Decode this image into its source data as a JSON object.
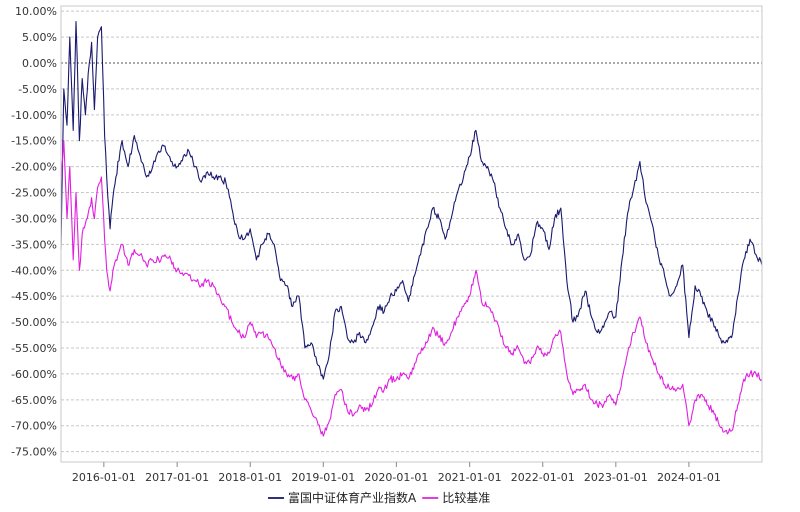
{
  "chart_data": {
    "type": "line",
    "title": "",
    "xlabel": "",
    "ylabel": "",
    "ylim": [
      -77,
      11
    ],
    "y_ticks": [
      10,
      5,
      0,
      -5,
      -10,
      -15,
      -20,
      -25,
      -30,
      -35,
      -40,
      -45,
      -50,
      -55,
      -60,
      -65,
      -70,
      -75
    ],
    "y_tick_format": "%.2f%",
    "x_ticks": [
      "2016-01-01",
      "2017-01-01",
      "2018-01-01",
      "2019-01-01",
      "2020-01-01",
      "2021-01-01",
      "2022-01-01",
      "2023-01-01",
      "2024-01-01"
    ],
    "x_range": [
      "2015-06-01",
      "2024-12-31"
    ],
    "grid": "horizontal dashed",
    "legend_position": "bottom-center",
    "series": [
      {
        "name": "富国中证体育产业指数A",
        "color": "#1a1a6e",
        "points": [
          [
            "2015-06-01",
            -36
          ],
          [
            "2015-06-15",
            -5
          ],
          [
            "2015-07-01",
            -12
          ],
          [
            "2015-07-15",
            5
          ],
          [
            "2015-08-01",
            -13
          ],
          [
            "2015-08-15",
            8
          ],
          [
            "2015-09-01",
            -15
          ],
          [
            "2015-09-15",
            -3
          ],
          [
            "2015-10-01",
            -10
          ],
          [
            "2015-10-15",
            -2
          ],
          [
            "2015-11-01",
            4
          ],
          [
            "2015-11-15",
            -9
          ],
          [
            "2015-12-01",
            5
          ],
          [
            "2015-12-20",
            7
          ],
          [
            "2016-01-05",
            -14
          ],
          [
            "2016-01-15",
            -22
          ],
          [
            "2016-02-01",
            -32
          ],
          [
            "2016-02-15",
            -26
          ],
          [
            "2016-03-01",
            -22
          ],
          [
            "2016-04-01",
            -15
          ],
          [
            "2016-05-01",
            -20
          ],
          [
            "2016-06-01",
            -14
          ],
          [
            "2016-07-01",
            -18
          ],
          [
            "2016-08-01",
            -22
          ],
          [
            "2016-09-01",
            -20
          ],
          [
            "2016-10-01",
            -17
          ],
          [
            "2016-11-01",
            -16
          ],
          [
            "2016-12-01",
            -19
          ],
          [
            "2017-01-01",
            -20
          ],
          [
            "2017-02-01",
            -18
          ],
          [
            "2017-03-01",
            -17
          ],
          [
            "2017-04-01",
            -20
          ],
          [
            "2017-05-01",
            -23
          ],
          [
            "2017-06-01",
            -21
          ],
          [
            "2017-07-01",
            -22
          ],
          [
            "2017-08-01",
            -22
          ],
          [
            "2017-09-01",
            -23
          ],
          [
            "2017-10-01",
            -28
          ],
          [
            "2017-11-01",
            -33
          ],
          [
            "2017-12-01",
            -34
          ],
          [
            "2018-01-01",
            -32
          ],
          [
            "2018-02-01",
            -38
          ],
          [
            "2018-03-01",
            -35
          ],
          [
            "2018-04-01",
            -33
          ],
          [
            "2018-05-01",
            -35
          ],
          [
            "2018-06-01",
            -42
          ],
          [
            "2018-07-01",
            -43
          ],
          [
            "2018-08-01",
            -47
          ],
          [
            "2018-09-01",
            -45
          ],
          [
            "2018-10-01",
            -55
          ],
          [
            "2018-11-01",
            -54
          ],
          [
            "2018-12-01",
            -58
          ],
          [
            "2019-01-01",
            -61
          ],
          [
            "2019-02-01",
            -56
          ],
          [
            "2019-03-01",
            -48
          ],
          [
            "2019-04-01",
            -47
          ],
          [
            "2019-05-01",
            -53
          ],
          [
            "2019-06-01",
            -54
          ],
          [
            "2019-07-01",
            -52
          ],
          [
            "2019-08-01",
            -54
          ],
          [
            "2019-09-01",
            -51
          ],
          [
            "2019-10-01",
            -47
          ],
          [
            "2019-11-01",
            -48
          ],
          [
            "2019-12-01",
            -45
          ],
          [
            "2020-01-01",
            -44
          ],
          [
            "2020-02-01",
            -42
          ],
          [
            "2020-03-01",
            -46
          ],
          [
            "2020-04-01",
            -41
          ],
          [
            "2020-05-01",
            -37
          ],
          [
            "2020-06-01",
            -32
          ],
          [
            "2020-07-01",
            -28
          ],
          [
            "2020-08-01",
            -30
          ],
          [
            "2020-09-01",
            -34
          ],
          [
            "2020-10-01",
            -30
          ],
          [
            "2020-11-01",
            -25
          ],
          [
            "2020-12-01",
            -22
          ],
          [
            "2021-01-01",
            -18
          ],
          [
            "2021-02-01",
            -13
          ],
          [
            "2021-03-01",
            -19
          ],
          [
            "2021-04-01",
            -20
          ],
          [
            "2021-05-01",
            -23
          ],
          [
            "2021-06-01",
            -28
          ],
          [
            "2021-07-01",
            -32
          ],
          [
            "2021-08-01",
            -35
          ],
          [
            "2021-09-01",
            -33
          ],
          [
            "2021-10-01",
            -38
          ],
          [
            "2021-11-01",
            -37
          ],
          [
            "2021-12-01",
            -31
          ],
          [
            "2022-01-01",
            -32
          ],
          [
            "2022-02-01",
            -36
          ],
          [
            "2022-03-01",
            -30
          ],
          [
            "2022-04-01",
            -28
          ],
          [
            "2022-05-01",
            -42
          ],
          [
            "2022-06-01",
            -50
          ],
          [
            "2022-07-01",
            -48
          ],
          [
            "2022-08-01",
            -44
          ],
          [
            "2022-09-01",
            -49
          ],
          [
            "2022-10-01",
            -52
          ],
          [
            "2022-11-01",
            -51
          ],
          [
            "2022-12-01",
            -48
          ],
          [
            "2023-01-01",
            -49
          ],
          [
            "2023-02-01",
            -38
          ],
          [
            "2023-03-01",
            -29
          ],
          [
            "2023-04-01",
            -24
          ],
          [
            "2023-05-01",
            -19
          ],
          [
            "2023-06-01",
            -27
          ],
          [
            "2023-07-01",
            -31
          ],
          [
            "2023-08-01",
            -37
          ],
          [
            "2023-09-01",
            -41
          ],
          [
            "2023-10-01",
            -45
          ],
          [
            "2023-11-01",
            -43
          ],
          [
            "2023-12-01",
            -39
          ],
          [
            "2024-01-01",
            -53
          ],
          [
            "2024-02-01",
            -43
          ],
          [
            "2024-03-01",
            -45
          ],
          [
            "2024-04-01",
            -48
          ],
          [
            "2024-05-01",
            -50
          ],
          [
            "2024-06-01",
            -53
          ],
          [
            "2024-07-01",
            -54
          ],
          [
            "2024-08-01",
            -53
          ],
          [
            "2024-09-01",
            -45
          ],
          [
            "2024-10-01",
            -38
          ],
          [
            "2024-11-01",
            -34
          ],
          [
            "2024-12-01",
            -37
          ],
          [
            "2024-12-31",
            -39
          ]
        ]
      },
      {
        "name": "比较基准",
        "color": "#e020e0",
        "points": [
          [
            "2015-06-01",
            -23
          ],
          [
            "2015-06-15",
            -15
          ],
          [
            "2015-07-01",
            -30
          ],
          [
            "2015-07-15",
            -20
          ],
          [
            "2015-08-01",
            -38
          ],
          [
            "2015-08-15",
            -25
          ],
          [
            "2015-09-01",
            -40
          ],
          [
            "2015-09-15",
            -33
          ],
          [
            "2015-10-01",
            -31
          ],
          [
            "2015-10-15",
            -29
          ],
          [
            "2015-11-01",
            -26
          ],
          [
            "2015-11-15",
            -30
          ],
          [
            "2015-12-01",
            -24
          ],
          [
            "2015-12-20",
            -22
          ],
          [
            "2016-01-05",
            -34
          ],
          [
            "2016-01-15",
            -40
          ],
          [
            "2016-02-01",
            -44
          ],
          [
            "2016-02-15",
            -40
          ],
          [
            "2016-03-01",
            -38
          ],
          [
            "2016-04-01",
            -35
          ],
          [
            "2016-05-01",
            -39
          ],
          [
            "2016-06-01",
            -36
          ],
          [
            "2016-07-01",
            -37
          ],
          [
            "2016-08-01",
            -39
          ],
          [
            "2016-09-01",
            -38
          ],
          [
            "2016-10-01",
            -38
          ],
          [
            "2016-11-01",
            -37
          ],
          [
            "2016-12-01",
            -38
          ],
          [
            "2017-01-01",
            -40
          ],
          [
            "2017-02-01",
            -41
          ],
          [
            "2017-03-01",
            -41
          ],
          [
            "2017-04-01",
            -42
          ],
          [
            "2017-05-01",
            -43
          ],
          [
            "2017-06-01",
            -42
          ],
          [
            "2017-07-01",
            -43
          ],
          [
            "2017-08-01",
            -45
          ],
          [
            "2017-09-01",
            -47
          ],
          [
            "2017-10-01",
            -50
          ],
          [
            "2017-11-01",
            -52
          ],
          [
            "2017-12-01",
            -53
          ],
          [
            "2018-01-01",
            -50
          ],
          [
            "2018-02-01",
            -53
          ],
          [
            "2018-03-01",
            -52
          ],
          [
            "2018-04-01",
            -53
          ],
          [
            "2018-05-01",
            -55
          ],
          [
            "2018-06-01",
            -58
          ],
          [
            "2018-07-01",
            -60
          ],
          [
            "2018-08-01",
            -61
          ],
          [
            "2018-09-01",
            -60
          ],
          [
            "2018-10-01",
            -65
          ],
          [
            "2018-11-01",
            -67
          ],
          [
            "2018-12-01",
            -69
          ],
          [
            "2019-01-01",
            -72
          ],
          [
            "2019-02-01",
            -69
          ],
          [
            "2019-03-01",
            -64
          ],
          [
            "2019-04-01",
            -63
          ],
          [
            "2019-05-01",
            -67
          ],
          [
            "2019-06-01",
            -68
          ],
          [
            "2019-07-01",
            -66
          ],
          [
            "2019-08-01",
            -67
          ],
          [
            "2019-09-01",
            -66
          ],
          [
            "2019-10-01",
            -63
          ],
          [
            "2019-11-01",
            -63
          ],
          [
            "2019-12-01",
            -61
          ],
          [
            "2020-01-01",
            -61
          ],
          [
            "2020-02-01",
            -60
          ],
          [
            "2020-03-01",
            -61
          ],
          [
            "2020-04-01",
            -58
          ],
          [
            "2020-05-01",
            -56
          ],
          [
            "2020-06-01",
            -54
          ],
          [
            "2020-07-01",
            -51
          ],
          [
            "2020-08-01",
            -53
          ],
          [
            "2020-09-01",
            -54
          ],
          [
            "2020-10-01",
            -52
          ],
          [
            "2020-11-01",
            -49
          ],
          [
            "2020-12-01",
            -47
          ],
          [
            "2021-01-01",
            -45
          ],
          [
            "2021-02-01",
            -40
          ],
          [
            "2021-03-01",
            -46
          ],
          [
            "2021-04-01",
            -47
          ],
          [
            "2021-05-01",
            -49
          ],
          [
            "2021-06-01",
            -52
          ],
          [
            "2021-07-01",
            -55
          ],
          [
            "2021-08-01",
            -56
          ],
          [
            "2021-09-01",
            -55
          ],
          [
            "2021-10-01",
            -58
          ],
          [
            "2021-11-01",
            -58
          ],
          [
            "2021-12-01",
            -55
          ],
          [
            "2022-01-01",
            -56
          ],
          [
            "2022-02-01",
            -56
          ],
          [
            "2022-03-01",
            -53
          ],
          [
            "2022-04-01",
            -52
          ],
          [
            "2022-05-01",
            -60
          ],
          [
            "2022-06-01",
            -64
          ],
          [
            "2022-07-01",
            -63
          ],
          [
            "2022-08-01",
            -62
          ],
          [
            "2022-09-01",
            -65
          ],
          [
            "2022-10-01",
            -66
          ],
          [
            "2022-11-01",
            -66
          ],
          [
            "2022-12-01",
            -64
          ],
          [
            "2023-01-01",
            -66
          ],
          [
            "2023-02-01",
            -61
          ],
          [
            "2023-03-01",
            -56
          ],
          [
            "2023-04-01",
            -52
          ],
          [
            "2023-05-01",
            -49
          ],
          [
            "2023-06-01",
            -54
          ],
          [
            "2023-07-01",
            -57
          ],
          [
            "2023-08-01",
            -60
          ],
          [
            "2023-09-01",
            -62
          ],
          [
            "2023-10-01",
            -63
          ],
          [
            "2023-11-01",
            -63
          ],
          [
            "2023-12-01",
            -62
          ],
          [
            "2024-01-01",
            -70
          ],
          [
            "2024-02-01",
            -65
          ],
          [
            "2024-03-01",
            -64
          ],
          [
            "2024-04-01",
            -66
          ],
          [
            "2024-05-01",
            -67
          ],
          [
            "2024-06-01",
            -70
          ],
          [
            "2024-07-01",
            -71
          ],
          [
            "2024-08-01",
            -71
          ],
          [
            "2024-09-01",
            -66
          ],
          [
            "2024-10-01",
            -61
          ],
          [
            "2024-11-01",
            -60
          ],
          [
            "2024-12-01",
            -60
          ],
          [
            "2024-12-31",
            -61
          ]
        ]
      }
    ]
  }
}
